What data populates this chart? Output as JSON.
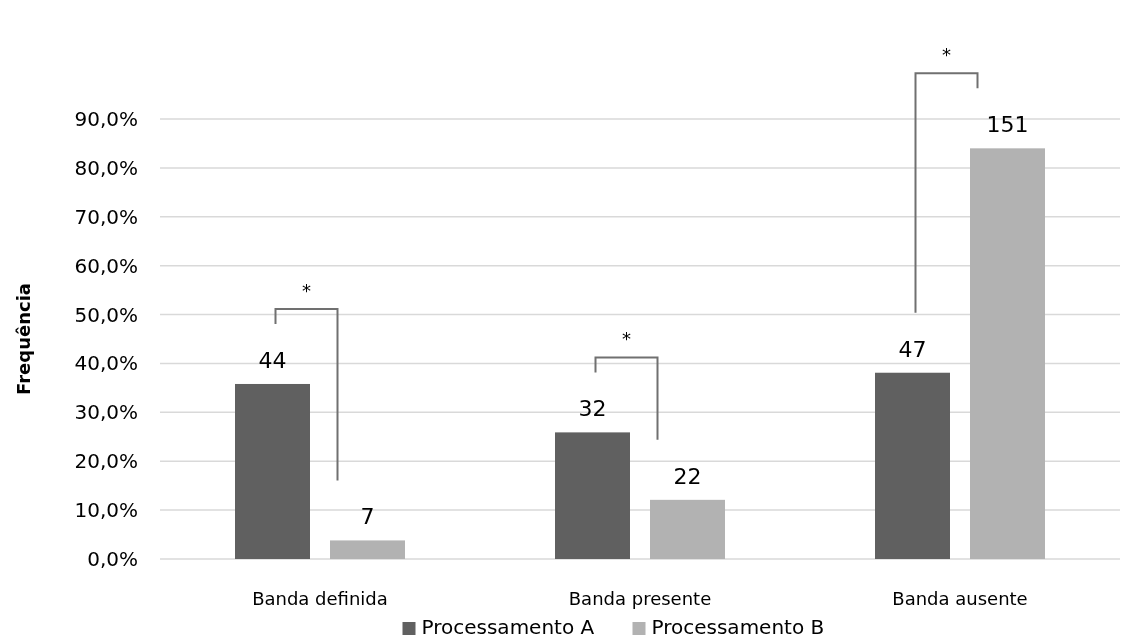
{
  "chart_data": {
    "type": "bar",
    "ylabel": "Frequência",
    "categories": [
      "Banda definida",
      "Banda presente",
      "Banda ausente"
    ],
    "series": [
      {
        "name": "Processamento A",
        "color": "#606060",
        "values": [
          35.8,
          25.9,
          38.1
        ]
      },
      {
        "name": "Processamento B",
        "color": "#b2b2b2",
        "values": [
          3.8,
          12.1,
          84.0
        ]
      }
    ],
    "ylim": [
      0,
      90
    ],
    "yticks": [
      {
        "value": 0,
        "label": "0,0%"
      },
      {
        "value": 10,
        "label": "10,0%"
      },
      {
        "value": 20,
        "label": "20,0%"
      },
      {
        "value": 30,
        "label": "30,0%"
      },
      {
        "value": 40,
        "label": "40,0%"
      },
      {
        "value": 50,
        "label": "50,0%"
      },
      {
        "value": 60,
        "label": "60,0%"
      },
      {
        "value": 70,
        "label": "70,0%"
      },
      {
        "value": 80,
        "label": "80,0%"
      },
      {
        "value": 90,
        "label": "90,0%"
      }
    ],
    "grid": "y",
    "legend": "bottom",
    "annotations": [
      "*",
      "*",
      "*",
      "44",
      "7",
      "32",
      "22",
      "47",
      "151"
    ]
  }
}
